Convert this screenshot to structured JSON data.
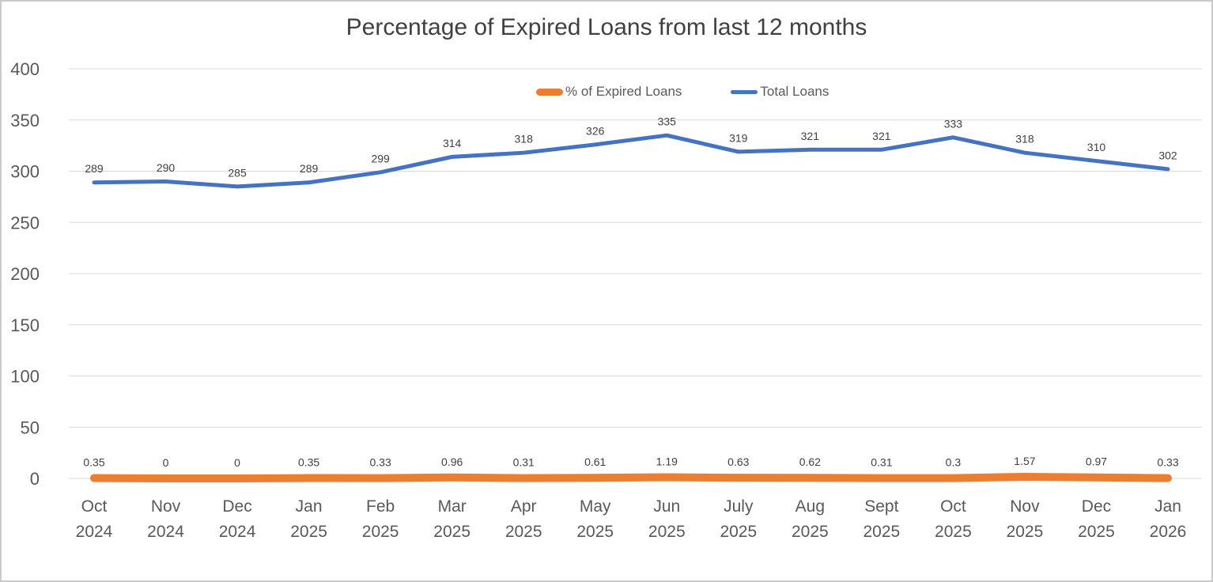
{
  "title": "Percentage of Expired Loans from last 12 months",
  "legend": {
    "position": "top-center",
    "items": [
      {
        "label": "% of Expired Loans",
        "swatch": "thick-rounded-line"
      },
      {
        "label": "Total Loans",
        "swatch": "thin-line"
      }
    ]
  },
  "colors": {
    "expired_series": "#ED7D31",
    "total_series": "#4472C4",
    "gridline": "#D9D9D9",
    "axis_text": "#595959",
    "data_label_text": "#404040",
    "title_text": "#404040",
    "canvas_border": "#C9C9C9"
  },
  "chart_data": {
    "type": "line",
    "title": "Percentage of Expired Loans from last 12 months",
    "categories": [
      "Oct 2024",
      "Nov 2024",
      "Dec 2024",
      "Jan 2025",
      "Feb 2025",
      "Mar 2025",
      "Apr 2025",
      "May 2025",
      "Jun 2025",
      "July 2025",
      "Aug 2025",
      "Sept 2025",
      "Oct 2025",
      "Nov 2025",
      "Dec 2025",
      "Jan 2026"
    ],
    "series": [
      {
        "name": "% of Expired Loans",
        "color": "#ED7D31",
        "line_width": 10,
        "values": [
          0.35,
          0,
          0,
          0.35,
          0.33,
          0.96,
          0.31,
          0.61,
          1.19,
          0.63,
          0.62,
          0.31,
          0.3,
          1.57,
          0.97,
          0.33
        ],
        "labels": [
          "0.35",
          "0",
          "0",
          "0.35",
          "0.33",
          "0.96",
          "0.31",
          "0.61",
          "1.19",
          "0.63",
          "0.62",
          "0.31",
          "0.3",
          "1.57",
          "0.97",
          "0.33"
        ]
      },
      {
        "name": "Total Loans",
        "color": "#4472C4",
        "line_width": 5,
        "values": [
          289,
          290,
          285,
          289,
          299,
          314,
          318,
          326,
          335,
          319,
          321,
          321,
          333,
          318,
          310,
          302
        ],
        "labels": [
          "289",
          "290",
          "285",
          "289",
          "299",
          "314",
          "318",
          "326",
          "335",
          "319",
          "321",
          "321",
          "333",
          "318",
          "310",
          "302"
        ]
      }
    ],
    "xlabel": "",
    "ylabel": "",
    "ylim": [
      0,
      400
    ],
    "y_ticks": [
      0,
      50,
      100,
      150,
      200,
      250,
      300,
      350,
      400
    ],
    "grid": true,
    "legend_position": "top",
    "data_labels": true
  }
}
